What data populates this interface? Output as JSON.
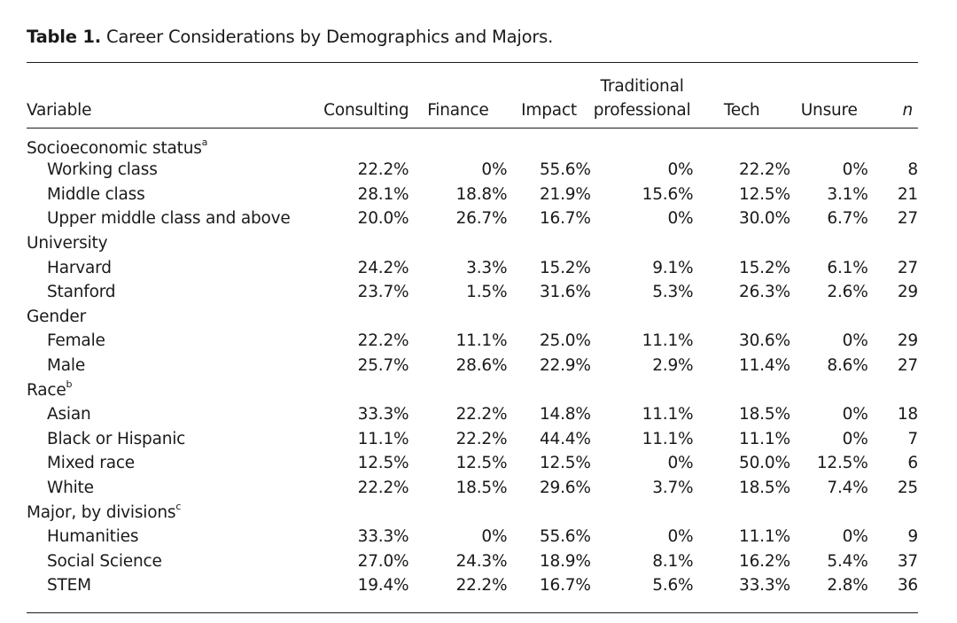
{
  "caption": {
    "label": "Table 1.",
    "title": "Career Considerations by Demographics and Majors."
  },
  "columns": {
    "variable": "Variable",
    "consulting": "Consulting",
    "finance": "Finance",
    "impact": "Impact",
    "traditional_line1": "Traditional",
    "traditional_line2": "professional",
    "tech": "Tech",
    "unsure": "Unsure",
    "n": "n"
  },
  "groups": [
    {
      "label": "Socioeconomic status",
      "note": "a",
      "rows": [
        {
          "label": "Working class",
          "consulting": "22.2%",
          "finance": "0%",
          "impact": "55.6%",
          "traditional": "0%",
          "tech": "22.2%",
          "unsure": "0%",
          "n": "8"
        },
        {
          "label": "Middle class",
          "consulting": "28.1%",
          "finance": "18.8%",
          "impact": "21.9%",
          "traditional": "15.6%",
          "tech": "12.5%",
          "unsure": "3.1%",
          "n": "21"
        },
        {
          "label": "Upper middle class and above",
          "consulting": "20.0%",
          "finance": "26.7%",
          "impact": "16.7%",
          "traditional": "0%",
          "tech": "30.0%",
          "unsure": "6.7%",
          "n": "27"
        }
      ]
    },
    {
      "label": "University",
      "note": "",
      "rows": [
        {
          "label": "Harvard",
          "consulting": "24.2%",
          "finance": "3.3%",
          "impact": "15.2%",
          "traditional": "9.1%",
          "tech": "15.2%",
          "unsure": "6.1%",
          "n": "27"
        },
        {
          "label": "Stanford",
          "consulting": "23.7%",
          "finance": "1.5%",
          "impact": "31.6%",
          "traditional": "5.3%",
          "tech": "26.3%",
          "unsure": "2.6%",
          "n": "29"
        }
      ]
    },
    {
      "label": "Gender",
      "note": "",
      "rows": [
        {
          "label": "Female",
          "consulting": "22.2%",
          "finance": "11.1%",
          "impact": "25.0%",
          "traditional": "11.1%",
          "tech": "30.6%",
          "unsure": "0%",
          "n": "29"
        },
        {
          "label": "Male",
          "consulting": "25.7%",
          "finance": "28.6%",
          "impact": "22.9%",
          "traditional": "2.9%",
          "tech": "11.4%",
          "unsure": "8.6%",
          "n": "27"
        }
      ]
    },
    {
      "label": "Race",
      "note": "b",
      "rows": [
        {
          "label": "Asian",
          "consulting": "33.3%",
          "finance": "22.2%",
          "impact": "14.8%",
          "traditional": "11.1%",
          "tech": "18.5%",
          "unsure": "0%",
          "n": "18"
        },
        {
          "label": "Black or Hispanic",
          "consulting": "11.1%",
          "finance": "22.2%",
          "impact": "44.4%",
          "traditional": "11.1%",
          "tech": "11.1%",
          "unsure": "0%",
          "n": "7"
        },
        {
          "label": "Mixed race",
          "consulting": "12.5%",
          "finance": "12.5%",
          "impact": "12.5%",
          "traditional": "0%",
          "tech": "50.0%",
          "unsure": "12.5%",
          "n": "6"
        },
        {
          "label": "White",
          "consulting": "22.2%",
          "finance": "18.5%",
          "impact": "29.6%",
          "traditional": "3.7%",
          "tech": "18.5%",
          "unsure": "7.4%",
          "n": "25"
        }
      ]
    },
    {
      "label": "Major, by divisions",
      "note": "c",
      "rows": [
        {
          "label": "Humanities",
          "consulting": "33.3%",
          "finance": "0%",
          "impact": "55.6%",
          "traditional": "0%",
          "tech": "11.1%",
          "unsure": "0%",
          "n": "9"
        },
        {
          "label": "Social Science",
          "consulting": "27.0%",
          "finance": "24.3%",
          "impact": "18.9%",
          "traditional": "8.1%",
          "tech": "16.2%",
          "unsure": "5.4%",
          "n": "37"
        },
        {
          "label": "STEM",
          "consulting": "19.4%",
          "finance": "22.2%",
          "impact": "16.7%",
          "traditional": "5.6%",
          "tech": "33.3%",
          "unsure": "2.8%",
          "n": "36"
        }
      ]
    }
  ]
}
